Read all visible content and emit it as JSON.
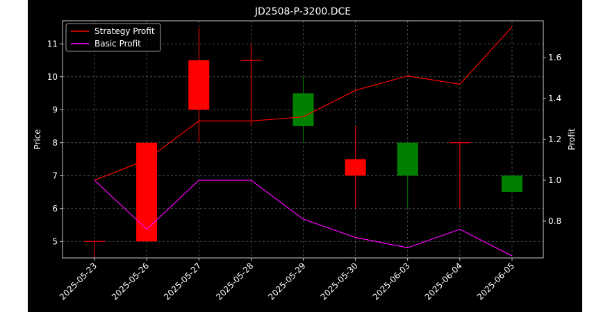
{
  "chart_data": {
    "type": "candlestick",
    "title": "JD2508-P-3200.DCE",
    "xlabel": "",
    "ylabel": "Price",
    "y2label": "Profit",
    "categories": [
      "2025-05-23",
      "2025-05-26",
      "2025-05-27",
      "2025-05-28",
      "2025-05-29",
      "2025-05-30",
      "2025-06-03",
      "2025-06-04",
      "2025-06-05"
    ],
    "yticks": [
      "5",
      "6",
      "7",
      "8",
      "9",
      "10",
      "11"
    ],
    "y2ticks": [
      "0.8",
      "1.0",
      "1.2",
      "1.4",
      "1.6"
    ],
    "ylim": [
      4.5,
      11.7
    ],
    "y2lim": [
      0.62,
      1.78
    ],
    "grid": true,
    "legend": "top-left",
    "candles": [
      {
        "date": "2025-05-23",
        "open": 5.0,
        "high": 5.0,
        "low": 4.5,
        "close": 5.0
      },
      {
        "date": "2025-05-26",
        "open": 5.0,
        "high": 8.0,
        "low": 5.0,
        "close": 8.0
      },
      {
        "date": "2025-05-27",
        "open": 9.0,
        "high": 11.5,
        "low": 8.0,
        "close": 10.5
      },
      {
        "date": "2025-05-28",
        "open": 10.5,
        "high": 11.0,
        "low": 8.5,
        "close": 10.5
      },
      {
        "date": "2025-05-29",
        "open": 9.5,
        "high": 10.0,
        "low": 8.0,
        "close": 8.5
      },
      {
        "date": "2025-05-30",
        "open": 7.0,
        "high": 8.5,
        "low": 6.0,
        "close": 7.5
      },
      {
        "date": "2025-06-03",
        "open": 8.0,
        "high": 8.0,
        "low": 6.0,
        "close": 7.0
      },
      {
        "date": "2025-06-04",
        "open": 8.0,
        "high": 8.0,
        "low": 6.0,
        "close": 8.0
      },
      {
        "date": "2025-06-05",
        "open": 7.0,
        "high": 7.0,
        "low": 6.5,
        "close": 6.5
      }
    ],
    "series": [
      {
        "name": "Strategy Profit",
        "color": "#ff0000",
        "values": [
          1.0,
          1.1,
          1.29,
          1.29,
          1.31,
          1.44,
          1.51,
          1.47,
          1.75
        ]
      },
      {
        "name": "Basic Profit",
        "color": "#ff00ff",
        "values": [
          1.0,
          0.76,
          1.0,
          1.0,
          0.81,
          0.72,
          0.67,
          0.76,
          0.63
        ]
      }
    ],
    "colors": {
      "up": "#ff0000",
      "down": "#008000",
      "background": "#000000",
      "grid": "#808080",
      "text": "#ffffff"
    }
  }
}
